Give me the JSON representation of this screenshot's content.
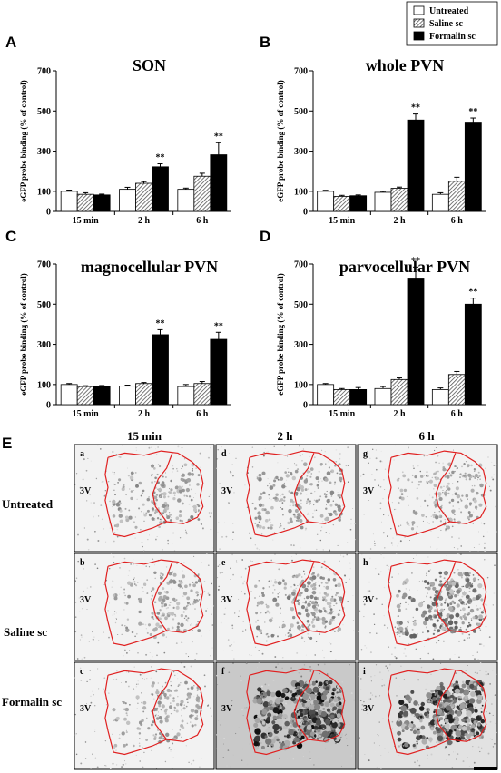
{
  "legend": {
    "entries": [
      {
        "label": "Untreated",
        "pattern": "white"
      },
      {
        "label": "Saline sc",
        "pattern": "hatch"
      },
      {
        "label": "Formalin sc",
        "pattern": "black"
      }
    ]
  },
  "chart_data": [
    {
      "panel_letter": "A",
      "type": "bar",
      "title": "SON",
      "ylabel": "eGFP probe binding (% of control)",
      "ylim": [
        0,
        700
      ],
      "yticks": [
        0,
        100,
        300,
        500,
        700
      ],
      "categories": [
        "15 min",
        "2 h",
        "6 h"
      ],
      "series": [
        {
          "name": "Untreated",
          "values": [
            100,
            110,
            110
          ],
          "errors": [
            6,
            10,
            6
          ]
        },
        {
          "name": "Saline sc",
          "values": [
            85,
            140,
            175
          ],
          "errors": [
            8,
            8,
            15
          ]
        },
        {
          "name": "Formalin sc",
          "values": [
            82,
            222,
            282
          ],
          "errors": [
            4,
            15,
            60
          ]
        }
      ],
      "significance": [
        "",
        "**",
        "**"
      ]
    },
    {
      "panel_letter": "B",
      "type": "bar",
      "title": "whole PVN",
      "ylabel": "eGFP probe binding (% of control)",
      "ylim": [
        0,
        700
      ],
      "yticks": [
        0,
        100,
        300,
        500,
        700
      ],
      "categories": [
        "15 min",
        "2 h",
        "6 h"
      ],
      "series": [
        {
          "name": "Untreated",
          "values": [
            100,
            95,
            85
          ],
          "errors": [
            5,
            5,
            8
          ]
        },
        {
          "name": "Saline sc",
          "values": [
            75,
            115,
            150
          ],
          "errors": [
            5,
            6,
            20
          ]
        },
        {
          "name": "Formalin sc",
          "values": [
            78,
            455,
            440
          ],
          "errors": [
            4,
            30,
            25
          ]
        }
      ],
      "significance": [
        "",
        "**",
        "**"
      ]
    },
    {
      "panel_letter": "C",
      "type": "bar",
      "title": "magnocellular PVN",
      "ylabel": "eGFP probe binding (% of control)",
      "ylim": [
        0,
        700
      ],
      "yticks": [
        0,
        100,
        300,
        500,
        700
      ],
      "categories": [
        "15 min",
        "2 h",
        "6 h"
      ],
      "series": [
        {
          "name": "Untreated",
          "values": [
            100,
            92,
            90
          ],
          "errors": [
            5,
            5,
            10
          ]
        },
        {
          "name": "Saline sc",
          "values": [
            90,
            105,
            105
          ],
          "errors": [
            4,
            5,
            10
          ]
        },
        {
          "name": "Formalin sc",
          "values": [
            92,
            348,
            325
          ],
          "errors": [
            3,
            25,
            35
          ]
        }
      ],
      "significance": [
        "",
        "**",
        "**"
      ]
    },
    {
      "panel_letter": "D",
      "type": "bar",
      "title": "parvocellular PVN",
      "ylabel": "eGFP probe binding (% of control)",
      "ylim": [
        0,
        700
      ],
      "yticks": [
        0,
        100,
        300,
        500,
        700
      ],
      "categories": [
        "15 min",
        "2 h",
        "6 h"
      ],
      "series": [
        {
          "name": "Untreated",
          "values": [
            100,
            80,
            75
          ],
          "errors": [
            5,
            10,
            8
          ]
        },
        {
          "name": "Saline sc",
          "values": [
            75,
            125,
            150
          ],
          "errors": [
            5,
            8,
            15
          ]
        },
        {
          "name": "Formalin sc",
          "values": [
            75,
            630,
            500
          ],
          "errors": [
            10,
            55,
            30
          ]
        }
      ],
      "significance": [
        "",
        "**",
        "**"
      ]
    }
  ],
  "images": {
    "panel_letter": "E",
    "columns": [
      "15 min",
      "2 h",
      "6 h"
    ],
    "rows": [
      "Untreated",
      "Saline sc",
      "Formalin sc"
    ],
    "ventricle_label": "3V",
    "cells": [
      [
        "a",
        "d",
        "g"
      ],
      [
        "b",
        "e",
        "h"
      ],
      [
        "c",
        "f",
        "i"
      ]
    ],
    "labeling_intensity": [
      [
        0.35,
        0.35,
        0.3
      ],
      [
        0.3,
        0.4,
        0.55
      ],
      [
        0.3,
        1.0,
        0.9
      ]
    ],
    "outline_color": "#e02020"
  }
}
